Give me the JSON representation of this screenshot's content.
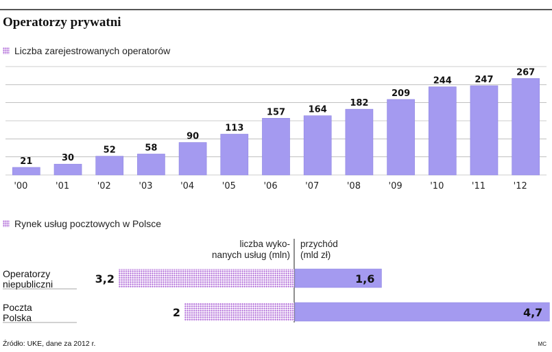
{
  "title": "Operatorzy prywatni",
  "colors": {
    "bar": "#a49af0",
    "bar_stroke": "#8e84e2",
    "dots": "#b06ad8",
    "grid": "#9a9a9a",
    "text": "#111111"
  },
  "chart_data": [
    {
      "type": "bar",
      "title": "Liczba zarejestrowanych operatorów",
      "categories": [
        "'00",
        "'01",
        "'02",
        "'03",
        "'04",
        "'05",
        "'06",
        "'07",
        "'08",
        "'09",
        "'10",
        "'11",
        "'12"
      ],
      "values": [
        21,
        30,
        52,
        58,
        90,
        113,
        157,
        164,
        182,
        209,
        244,
        247,
        267
      ],
      "ylim": [
        0,
        300
      ],
      "grid": true
    },
    {
      "type": "bar",
      "orientation": "horizontal-diverging",
      "title": "Rynek usług pocztowych w Polsce",
      "categories": [
        "Operatorzy niepubliczni",
        "Poczta Polska"
      ],
      "category_lines": [
        [
          "Operatorzy",
          "niepubliczni"
        ],
        [
          "Poczta",
          "Polska"
        ]
      ],
      "series": [
        {
          "name": "liczba wykonanych usług (mln)",
          "name_lines": [
            "liczba wyko-",
            "nanych usług (mln)"
          ],
          "values": [
            3.2,
            2
          ],
          "labels": [
            "3,2",
            "2"
          ]
        },
        {
          "name": "przychód (mld zł)",
          "name_lines": [
            "przychód",
            "(mld zł)"
          ],
          "values": [
            1.6,
            4.7
          ],
          "labels": [
            "1,6",
            "4,7"
          ]
        }
      ]
    }
  ],
  "source": "Źródło: UKE, dane za 2012 r.",
  "credit": "MC"
}
